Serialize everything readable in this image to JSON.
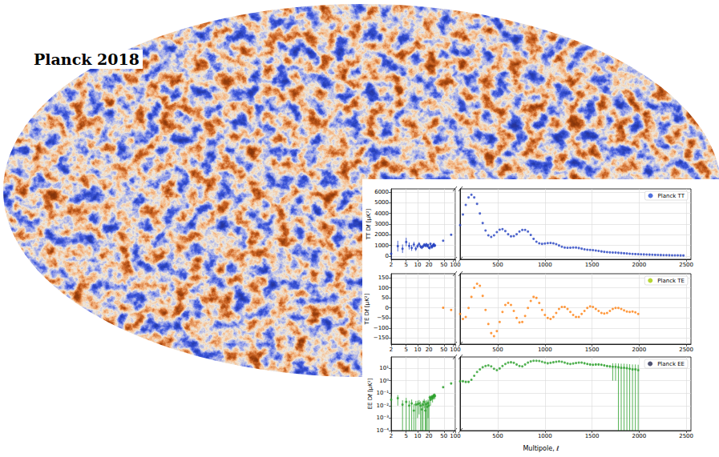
{
  "title": "Planck 2018",
  "chart_data": [
    {
      "type": "scatter",
      "ylabel": "TT Dℓ [μK²]",
      "grid": true,
      "legend": "upper right",
      "ylim": [
        -300,
        6300
      ],
      "yticks": [
        0,
        1000,
        2000,
        3000,
        4000,
        5000,
        6000
      ],
      "x_axes": [
        {
          "xlim": [
            2,
            100
          ],
          "xticks": [
            2,
            5,
            10,
            20,
            50,
            100
          ],
          "log": true
        },
        {
          "xlim": [
            100,
            2550
          ],
          "xticks": [
            500,
            1000,
            1500,
            2000,
            2500
          ]
        }
      ],
      "series": [
        {
          "name": "Planck TT",
          "color": "#2340c0",
          "marker": "o",
          "parts": [
            {
              "x": [
                2,
                3,
                4,
                5,
                6,
                7,
                8,
                9,
                10,
                11,
                12,
                13,
                14,
                15,
                16,
                17,
                18,
                19,
                20,
                21,
                22,
                23,
                24,
                25,
                26,
                27,
                28,
                29,
                47.7,
                77.6
              ],
              "values": [
                226,
                936,
                692,
                1320,
                952,
                771,
                1090,
                697,
                938,
                1117,
                899,
                812,
                913,
                1074,
                983,
                1106,
                940,
                1030,
                800,
                760,
                1150,
                940,
                820,
                930,
                1040,
                1120,
                960,
                1000,
                1440,
                2000
              ],
              "errors": [
                600,
                500,
                400,
                400,
                330,
                280,
                250,
                220,
                200,
                190,
                170,
                160,
                150,
                145,
                140,
                135,
                130,
                125,
                120,
                115,
                110,
                105,
                100,
                100,
                95,
                95,
                90,
                90,
                40,
                50
              ]
            },
            {
              "x": [
                100,
                130,
                160,
                190,
                220,
                250,
                280,
                310,
                340,
                370,
                400,
                430,
                460,
                490,
                520,
                550,
                580,
                610,
                640,
                670,
                700,
                730,
                760,
                790,
                820,
                850,
                880,
                910,
                940,
                970,
                1000,
                1030,
                1060,
                1090,
                1120,
                1150,
                1180,
                1210,
                1240,
                1270,
                1300,
                1330,
                1360,
                1390,
                1420,
                1450,
                1480,
                1510,
                1540,
                1570,
                1600,
                1630,
                1660,
                1690,
                1720,
                1750,
                1780,
                1810,
                1840,
                1870,
                1900,
                1930,
                1960,
                1990,
                2020,
                2050,
                2080,
                2110,
                2140,
                2170,
                2200,
                2230,
                2260,
                2290,
                2320,
                2350,
                2380,
                2410,
                2440,
                2470
              ],
              "values": [
                2900,
                3900,
                4800,
                5500,
                5750,
                5500,
                4900,
                4000,
                3100,
                2400,
                1950,
                1800,
                1950,
                2250,
                2480,
                2530,
                2350,
                2050,
                1850,
                1880,
                2050,
                2300,
                2450,
                2460,
                2300,
                1980,
                1620,
                1350,
                1200,
                1150,
                1180,
                1220,
                1230,
                1200,
                1130,
                1000,
                880,
                800,
                780,
                790,
                810,
                800,
                760,
                700,
                640,
                600,
                580,
                560,
                530,
                490,
                440,
                400,
                370,
                350,
                340,
                330,
                310,
                290,
                270,
                250,
                230,
                210,
                195,
                180,
                170,
                160,
                150,
                140,
                130,
                120,
                110,
                103,
                96,
                90,
                85,
                80,
                75,
                70,
                66,
                62
              ]
            }
          ]
        }
      ]
    },
    {
      "type": "scatter",
      "ylabel": "TE Dℓ [μK²]",
      "grid": true,
      "legend": "upper right",
      "ylim": [
        -180,
        170
      ],
      "yticks": [
        {
          "value": -150,
          "label": "−150"
        },
        {
          "value": -100,
          "label": "−100"
        },
        {
          "value": -50,
          "label": "−50"
        },
        0,
        50,
        100,
        150
      ],
      "x_axes": [
        {
          "xlim": [
            2,
            100
          ],
          "xticks": [
            2,
            5,
            10,
            20,
            50,
            100
          ],
          "log": true
        },
        {
          "xlim": [
            100,
            2550
          ],
          "xticks": [
            500,
            1000,
            1500,
            2000,
            2500
          ]
        }
      ],
      "series": [
        {
          "name": "Planck TE",
          "color": "#ff7f0e",
          "marker": "o",
          "parts": [
            {
              "x": [
                47.7,
                77.6
              ],
              "values": [
                1,
                -10
              ],
              "errors": [
                4,
                4
              ]
            },
            {
              "x": [
                100,
                130,
                160,
                190,
                220,
                250,
                280,
                310,
                340,
                370,
                400,
                430,
                460,
                490,
                520,
                550,
                580,
                610,
                640,
                670,
                700,
                730,
                760,
                790,
                820,
                850,
                880,
                910,
                940,
                970,
                1000,
                1030,
                1060,
                1090,
                1120,
                1150,
                1180,
                1210,
                1240,
                1270,
                1300,
                1330,
                1360,
                1390,
                1420,
                1450,
                1480,
                1510,
                1540,
                1570,
                1600,
                1630,
                1660,
                1690,
                1720,
                1750,
                1780,
                1810,
                1840,
                1870,
                1900,
                1930,
                1960,
                1990
              ],
              "values": [
                -30,
                -55,
                -45,
                0,
                55,
                100,
                120,
                110,
                60,
                -10,
                -80,
                -125,
                -140,
                -115,
                -70,
                -20,
                15,
                25,
                15,
                -15,
                -50,
                -72,
                -70,
                -40,
                0,
                35,
                55,
                50,
                25,
                -10,
                -35,
                -50,
                -55,
                -45,
                -25,
                -5,
                5,
                5,
                -5,
                -20,
                -35,
                -45,
                -45,
                -30,
                -15,
                0,
                8,
                5,
                -5,
                -15,
                -25,
                -28,
                -25,
                -15,
                -5,
                0,
                0,
                -5,
                -12,
                -18,
                -20,
                -18,
                -22,
                -30
              ]
            }
          ]
        }
      ]
    },
    {
      "type": "scatter",
      "ylabel": "EE Dℓ [μK²]",
      "xlabel": "Multipole, ℓ",
      "grid": true,
      "legend": "upper right",
      "log": "y",
      "ylim": [
        0.0001,
        80
      ],
      "yticks": [
        {
          "value": 0.0001,
          "label": "10⁻⁴"
        },
        {
          "value": 0.001,
          "label": "10⁻³"
        },
        {
          "value": 0.01,
          "label": "10⁻²"
        },
        {
          "value": 0.1,
          "label": "10⁻¹"
        },
        {
          "value": 1,
          "label": "10⁰"
        },
        {
          "value": 10,
          "label": "10¹"
        }
      ],
      "x_axes": [
        {
          "xlim": [
            2,
            100
          ],
          "xticks": [
            2,
            5,
            10,
            20,
            50,
            100
          ],
          "log": true
        },
        {
          "xlim": [
            100,
            2550
          ],
          "xticks": [
            500,
            1000,
            1500,
            2000,
            2500
          ]
        }
      ],
      "series": [
        {
          "name": "Planck EE",
          "color": "#2ca02c",
          "marker": "o",
          "parts": [
            {
              "x": [
                2,
                3,
                4,
                5,
                6,
                7,
                8,
                9,
                10,
                11,
                12,
                13,
                14,
                15,
                16,
                17,
                18,
                19,
                20,
                21,
                22,
                23,
                24,
                25,
                26,
                27,
                28,
                29,
                47.7,
                77.6
              ],
              "values": [
                0.03,
                0.04,
                0.012,
                0.02,
                0.01,
                0.015,
                0.004,
                0.012,
                0.013,
                0.015,
                0.01,
                0.005,
                0.012,
                0.02,
                0.004,
                0.013,
                0.008,
                0.016,
                0.01,
                0.045,
                0.03,
                0.045,
                0.05,
                0.04,
                0.06,
                0.055,
                0.07,
                0.06,
                0.3,
                0.6
              ],
              "errors": [
                0.025,
                0.03,
                0.015,
                0.022,
                0.015,
                0.016,
                0.01,
                0.012,
                0.012,
                0.013,
                0.012,
                0.012,
                0.013,
                0.014,
                0.013,
                0.014,
                0.014,
                0.015,
                0.015,
                0.02,
                0.02,
                0.02,
                0.022,
                0.022,
                0.024,
                0.024,
                0.025,
                0.026,
                0.05,
                0.06
              ]
            },
            {
              "x": [
                100,
                130,
                160,
                190,
                220,
                250,
                280,
                310,
                340,
                370,
                400,
                430,
                460,
                490,
                520,
                550,
                580,
                610,
                640,
                670,
                700,
                730,
                760,
                790,
                820,
                850,
                880,
                910,
                940,
                970,
                1000,
                1030,
                1060,
                1090,
                1120,
                1150,
                1180,
                1210,
                1240,
                1270,
                1300,
                1330,
                1360,
                1390,
                1420,
                1450,
                1480,
                1510,
                1540,
                1570,
                1600,
                1630,
                1660,
                1690,
                1720,
                1750,
                1780,
                1810,
                1840,
                1870,
                1900,
                1930,
                1960,
                1990
              ],
              "values": [
                0.9,
                0.9,
                0.8,
                0.8,
                1.2,
                2.5,
                5,
                8,
                12,
                15,
                17,
                14,
                9,
                7,
                9.5,
                15,
                22,
                28,
                30,
                27,
                20,
                15,
                14,
                20,
                28,
                35,
                40,
                40,
                38,
                33,
                28,
                25,
                27,
                30,
                33,
                35,
                33,
                28,
                24,
                22,
                24,
                26,
                28,
                28,
                25,
                22,
                20,
                19,
                20,
                20,
                19,
                17,
                15,
                14,
                13,
                13,
                12,
                11,
                11,
                10,
                9,
                8,
                8,
                7
              ],
              "errors": [
                0.1,
                0.1,
                0.1,
                0.1,
                0.1,
                0.1,
                0.1,
                0.1,
                0.1,
                0.1,
                0.1,
                0.3,
                0.3,
                0.3,
                0.3,
                0.3,
                0.3,
                0.3,
                0.3,
                0.3,
                0.3,
                0.3,
                0.3,
                0.3,
                0.3,
                0.3,
                0.3,
                0.3,
                0.3,
                0.3,
                0.3,
                1,
                1,
                1,
                1,
                1,
                1,
                1,
                1,
                1,
                1,
                1,
                1,
                1,
                3,
                3,
                3,
                3,
                3,
                3,
                3,
                3,
                3,
                3,
                12,
                12,
                12,
                12,
                12,
                12,
                12,
                12,
                12,
                12
              ]
            }
          ]
        }
      ]
    }
  ]
}
